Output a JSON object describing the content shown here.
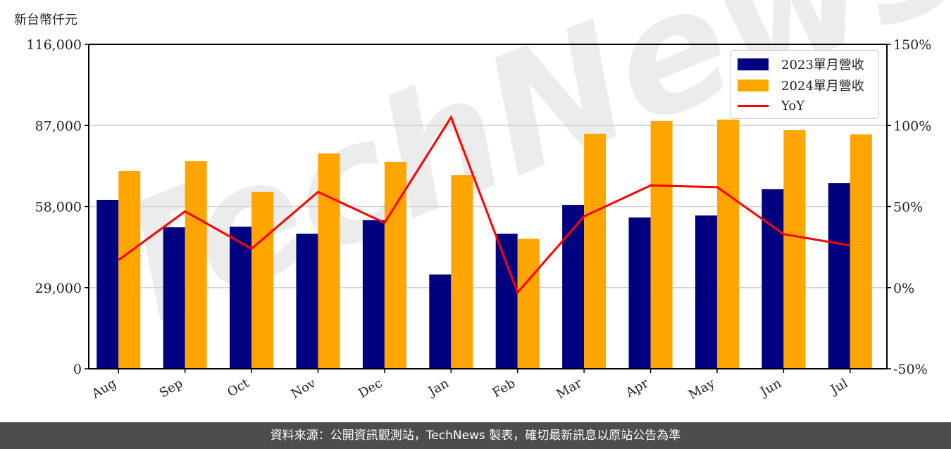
{
  "unit_label": "新台幣仟元",
  "footer": "資料來源：公開資訊觀測站，TechNews 製表，確切最新訊息以原站公告為準",
  "watermark": "TechNews",
  "colors": {
    "series_2023": "#000080",
    "series_2024": "#FFA500",
    "yoy": "#FF0000",
    "grid": "#d3d3d3",
    "footer_bg": "#4d4d4d"
  },
  "legend": {
    "items": [
      {
        "label": "2023單月營收",
        "type": "bar",
        "color": "#000080"
      },
      {
        "label": "2024單月營收",
        "type": "bar",
        "color": "#FFA500"
      },
      {
        "label": "YoY",
        "type": "line",
        "color": "#FF0000"
      }
    ]
  },
  "chart_data": {
    "type": "bar",
    "title": "",
    "xlabel": "",
    "ylabel": "新台幣仟元",
    "y2label": "YoY",
    "categories": [
      "Aug",
      "Sep",
      "Oct",
      "Nov",
      "Dec",
      "Jan",
      "Feb",
      "Mar",
      "Apr",
      "May",
      "Jun",
      "Jul"
    ],
    "series": [
      {
        "name": "2023單月營收",
        "type": "bar",
        "axis": "left",
        "values": [
          60400,
          50600,
          50800,
          48300,
          53100,
          33700,
          48300,
          58600,
          54100,
          54800,
          64200,
          66400
        ]
      },
      {
        "name": "2024單月營收",
        "type": "bar",
        "axis": "left",
        "values": [
          70700,
          74200,
          63200,
          77000,
          74000,
          69200,
          46500,
          84000,
          88600,
          89100,
          85300,
          83800
        ]
      },
      {
        "name": "YoY",
        "type": "line",
        "axis": "right",
        "unit": "%",
        "values": [
          17,
          47,
          24,
          59,
          40,
          105,
          -3,
          44,
          63,
          62,
          33,
          26
        ]
      }
    ],
    "ylim": [
      0,
      116000
    ],
    "yticks": [
      0,
      29000,
      58000,
      87000,
      116000
    ],
    "ytick_labels": [
      "0",
      "29,000",
      "58,000",
      "87,000",
      "116,000"
    ],
    "y2lim": [
      -50,
      150
    ],
    "y2ticks": [
      -50,
      0,
      50,
      100,
      150
    ],
    "y2tick_labels": [
      "-50%",
      "0%",
      "50%",
      "100%",
      "150%"
    ],
    "grid": true,
    "legend_position": "upper right"
  }
}
